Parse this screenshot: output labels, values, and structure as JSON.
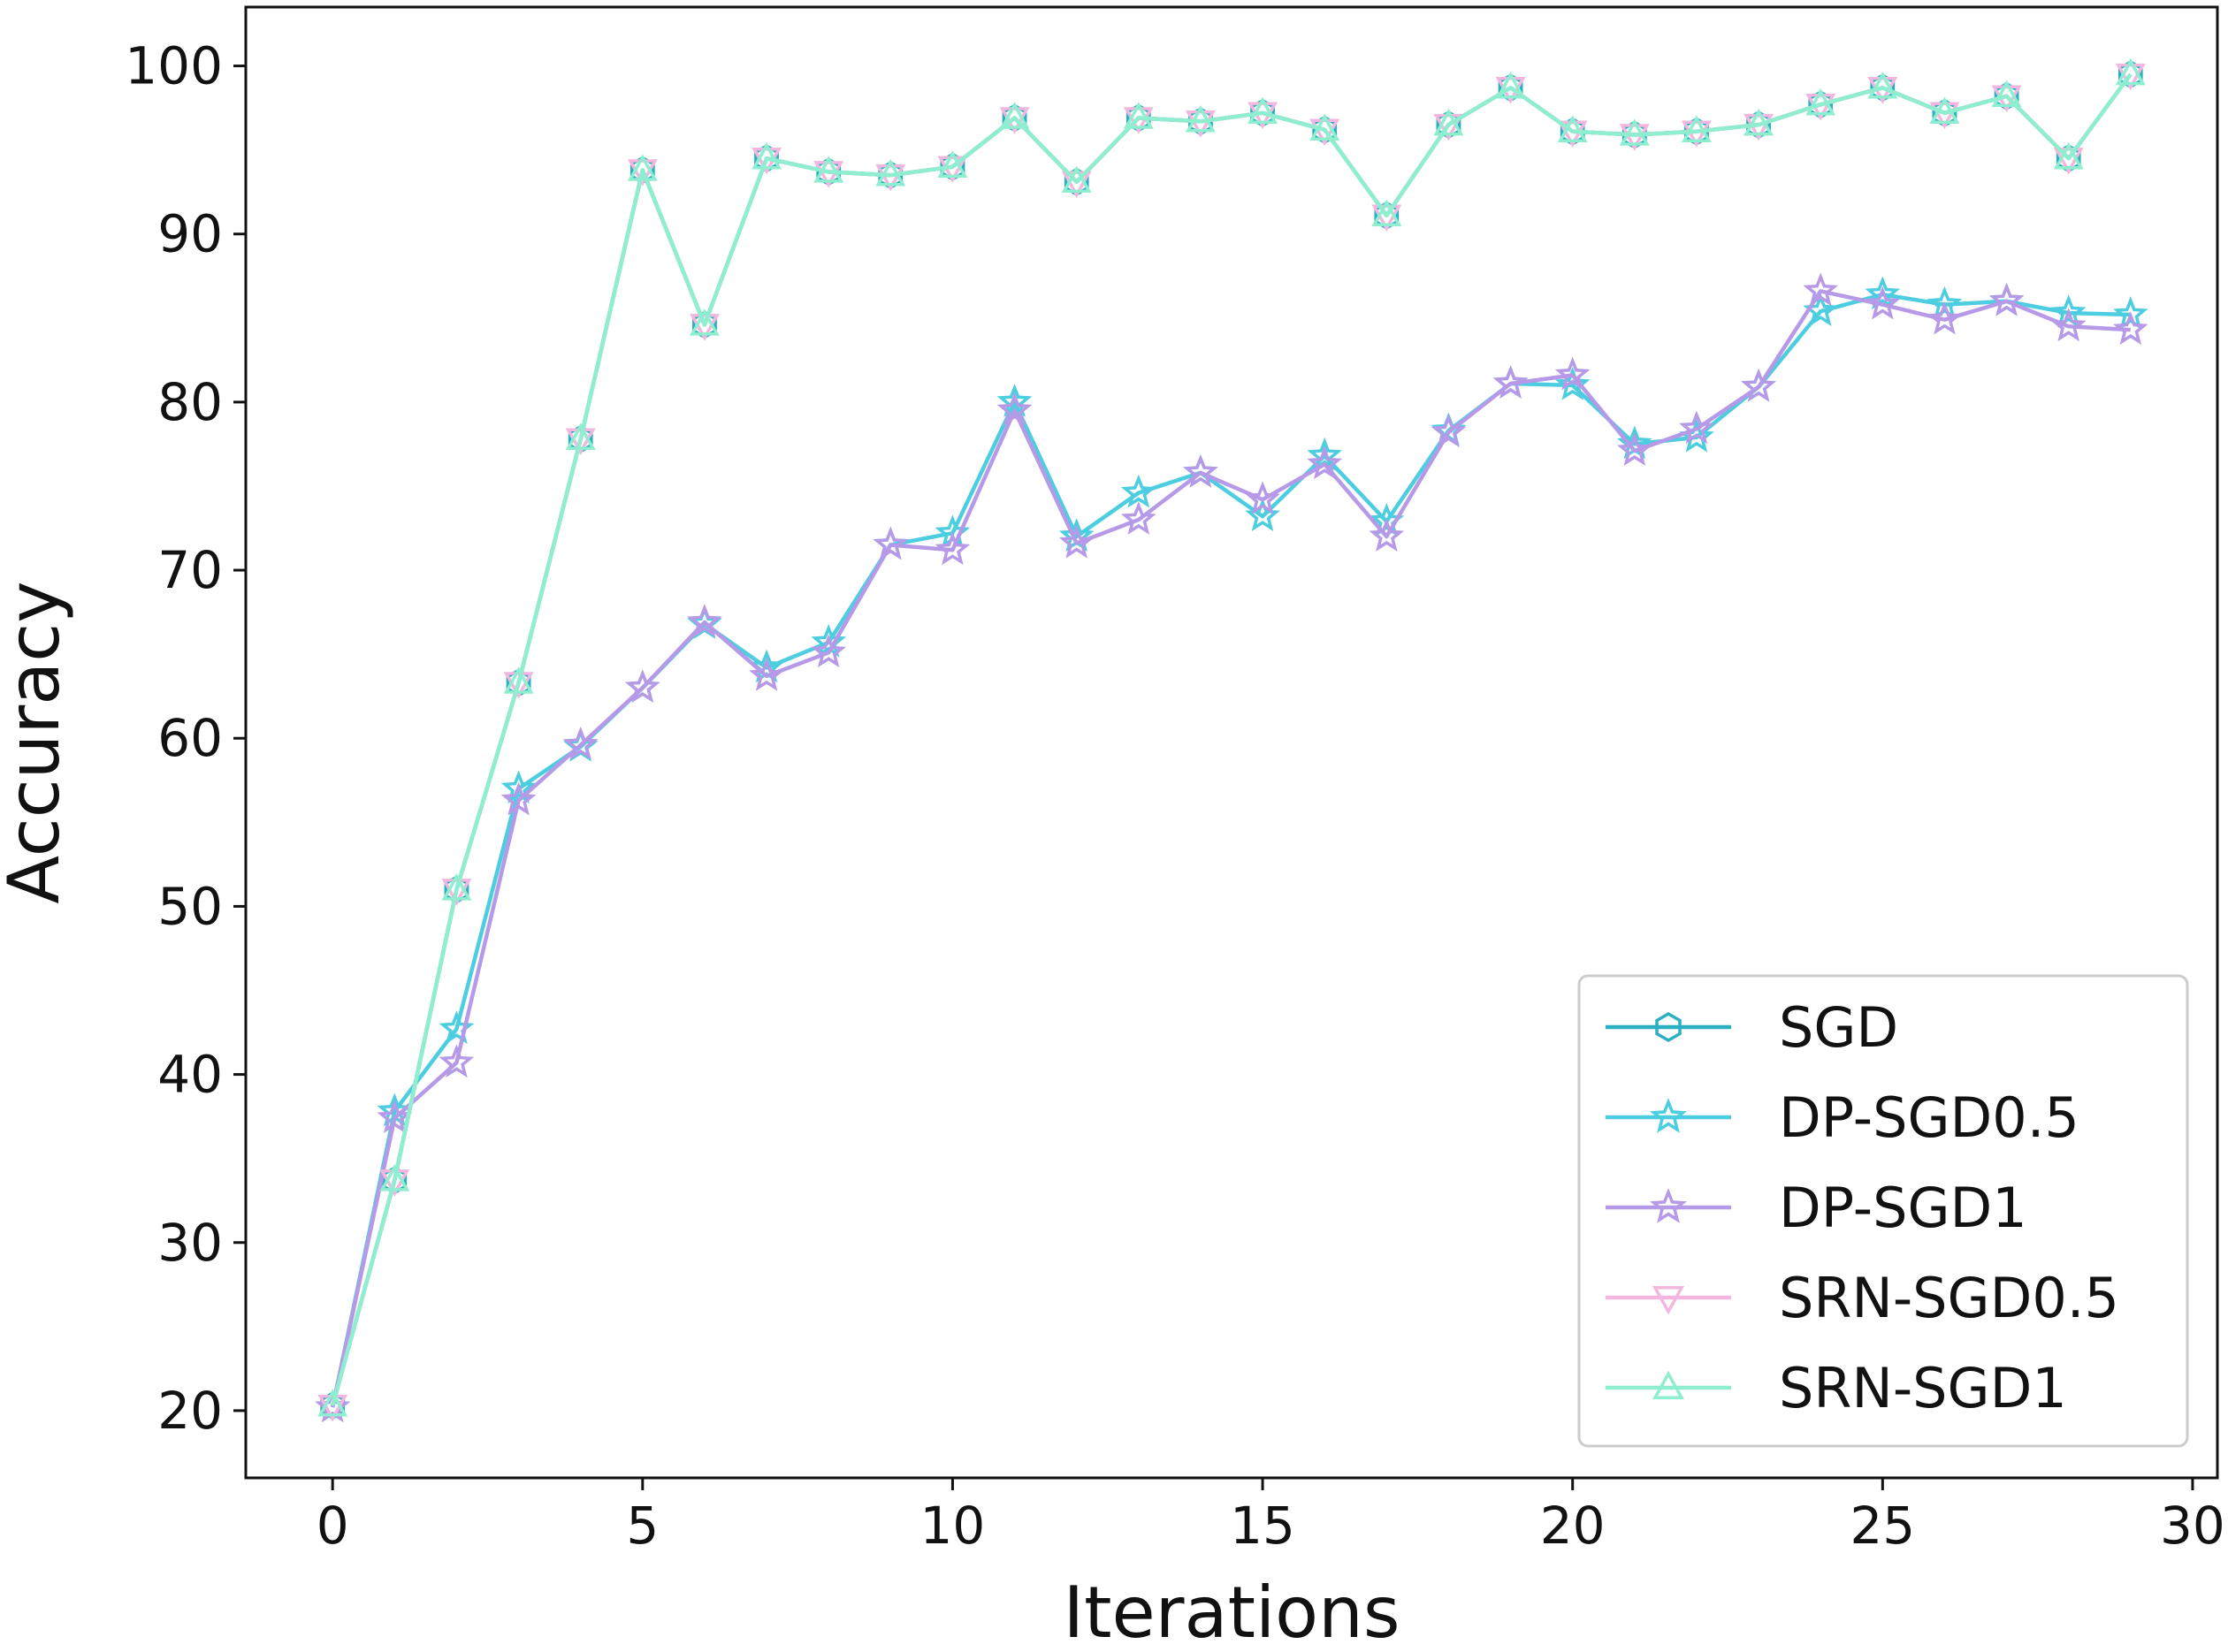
{
  "chart_data": {
    "type": "line",
    "title": "",
    "xlabel": "Iterations",
    "ylabel": "Accuracy",
    "xlim": [
      -1.4,
      30.4
    ],
    "ylim": [
      16,
      103.5
    ],
    "xticks": [
      0,
      5,
      10,
      15,
      20,
      25,
      30
    ],
    "yticks": [
      20,
      30,
      40,
      50,
      60,
      70,
      80,
      90,
      100
    ],
    "grid": false,
    "legend_position": "lower-right",
    "x": [
      0,
      1,
      2,
      3,
      4,
      5,
      6,
      7,
      8,
      9,
      10,
      11,
      12,
      13,
      14,
      15,
      16,
      17,
      18,
      19,
      20,
      21,
      22,
      23,
      24,
      25,
      26,
      27,
      28,
      29
    ],
    "series": [
      {
        "name": "SGD",
        "color": "#2ab0c0",
        "marker": "hexagon",
        "values": [
          20.3,
          33.7,
          51.0,
          63.3,
          77.8,
          93.8,
          84.6,
          94.5,
          93.7,
          93.5,
          94.0,
          96.9,
          93.1,
          96.9,
          96.7,
          97.2,
          96.2,
          91.1,
          96.5,
          98.7,
          96.1,
          95.9,
          96.1,
          96.5,
          97.7,
          98.7,
          97.2,
          98.2,
          94.5,
          99.5
        ]
      },
      {
        "name": "DP-SGD0.5",
        "color": "#4ccde0",
        "marker": "star",
        "values": [
          20.2,
          37.8,
          42.7,
          57.0,
          59.5,
          63.0,
          66.8,
          64.2,
          65.7,
          71.5,
          72.2,
          80.0,
          72.0,
          74.6,
          75.8,
          73.2,
          76.8,
          72.9,
          78.3,
          81.1,
          81.0,
          77.5,
          77.9,
          80.9,
          85.4,
          86.4,
          85.8,
          86.0,
          85.3,
          85.2
        ]
      },
      {
        "name": "DP-SGD1",
        "color": "#b69ae8",
        "marker": "star",
        "values": [
          20.2,
          37.4,
          40.7,
          56.3,
          59.6,
          63.0,
          66.9,
          63.7,
          65.1,
          71.5,
          71.2,
          79.5,
          71.6,
          73.0,
          75.8,
          74.2,
          76.3,
          72.0,
          78.2,
          81.1,
          81.6,
          77.1,
          78.4,
          80.9,
          86.6,
          85.8,
          84.9,
          86.0,
          84.5,
          84.3
        ]
      },
      {
        "name": "SRN-SGD0.5",
        "color": "#f2b6df",
        "marker": "triangle-down",
        "values": [
          20.3,
          33.7,
          51.0,
          63.3,
          77.8,
          93.8,
          84.6,
          94.5,
          93.7,
          93.5,
          94.0,
          96.9,
          93.1,
          96.9,
          96.7,
          97.2,
          96.2,
          91.1,
          96.5,
          98.7,
          96.1,
          95.9,
          96.1,
          96.5,
          97.7,
          98.7,
          97.2,
          98.2,
          94.5,
          99.5
        ]
      },
      {
        "name": "SRN-SGD1",
        "color": "#8eeecf",
        "marker": "triangle-up",
        "values": [
          20.3,
          33.7,
          51.0,
          63.3,
          77.8,
          93.8,
          84.6,
          94.5,
          93.7,
          93.5,
          94.0,
          96.9,
          93.1,
          96.9,
          96.7,
          97.2,
          96.2,
          91.1,
          96.5,
          98.7,
          96.1,
          95.9,
          96.1,
          96.5,
          97.7,
          98.7,
          97.2,
          98.2,
          94.5,
          99.5
        ]
      }
    ]
  }
}
